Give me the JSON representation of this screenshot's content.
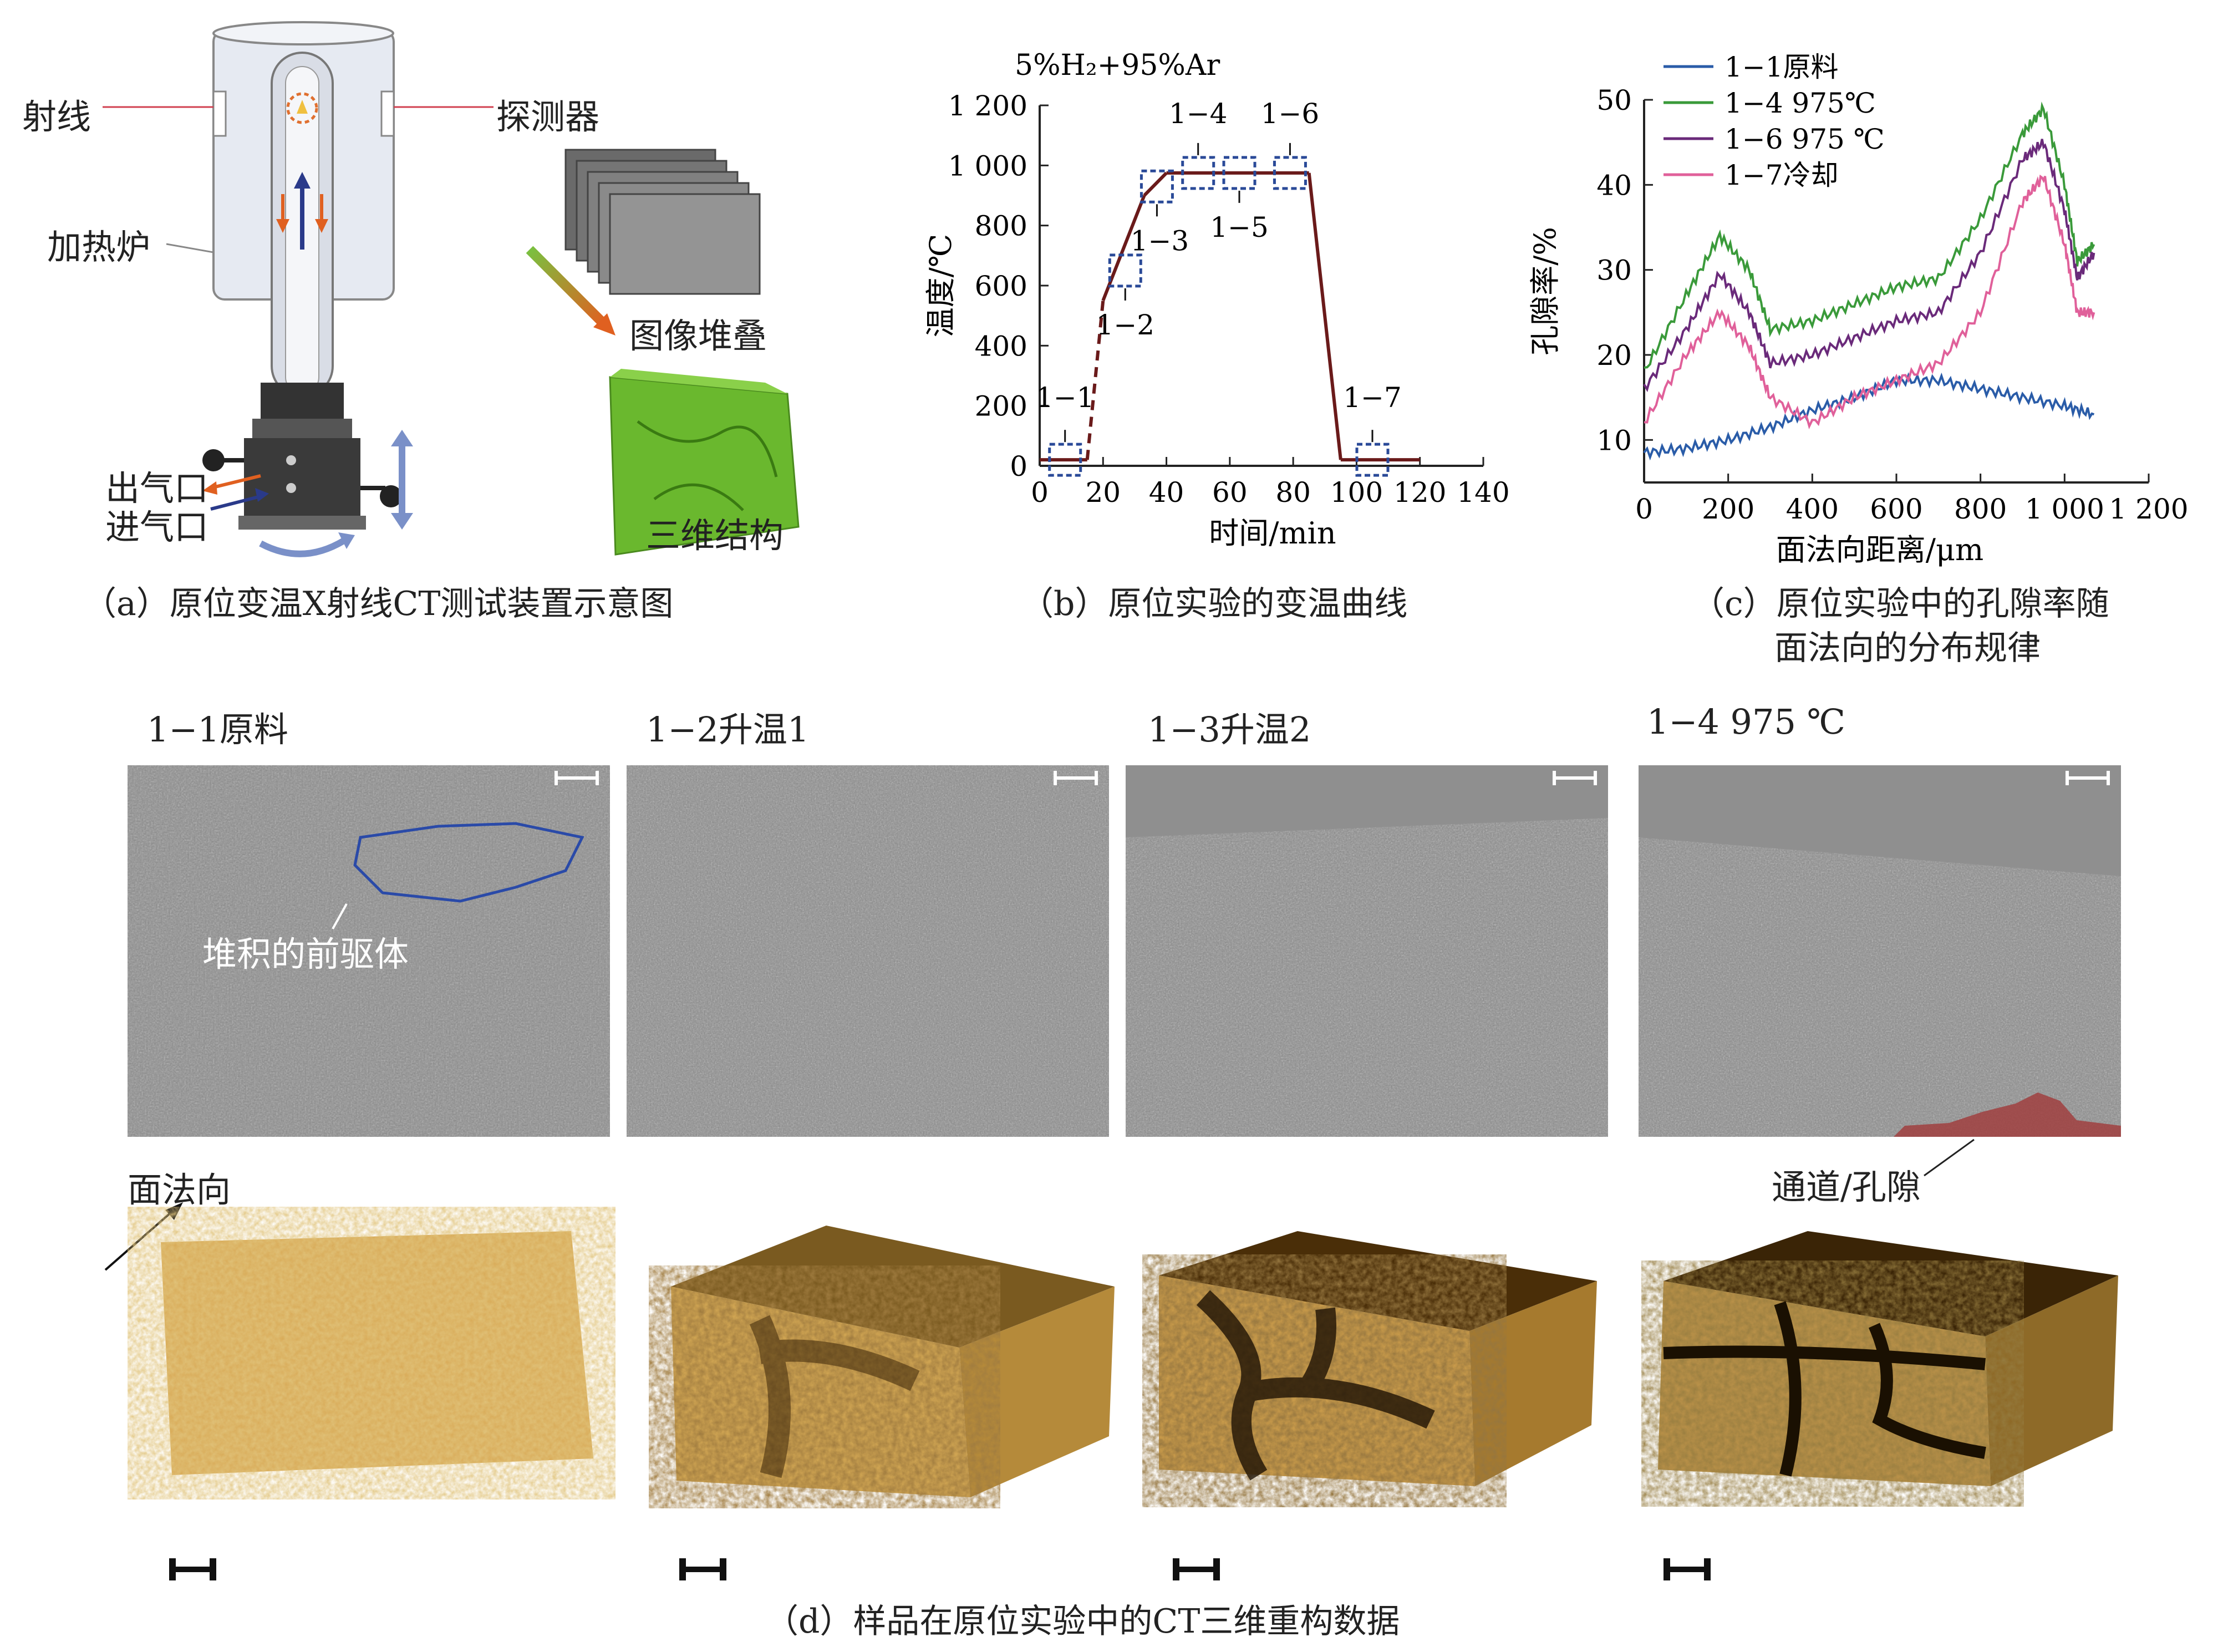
{
  "panel_a": {
    "ray_label": "射线",
    "detector_label": "探测器",
    "furnace_label": "加热炉",
    "outlet_label": "出气口",
    "inlet_label": "进气口",
    "stack_label": "图像堆叠",
    "structure_label": "三维结构",
    "caption": "（a）原位变温X射线CT测试装置示意图"
  },
  "panel_b": {
    "caption": "（b）原位实验的变温曲线",
    "atmosphere": "5%H₂+95%Ar",
    "points": [
      "1−1",
      "1−2",
      "1−3",
      "1−4",
      "1−5",
      "1−6",
      "1−7"
    ],
    "chart_data": {
      "type": "line",
      "xlabel": "时间/min",
      "ylabel": "温度/℃",
      "xlim": [
        0,
        140
      ],
      "ylim": [
        0,
        1200
      ],
      "x_ticks": [
        "0",
        "20",
        "40",
        "60",
        "80",
        "100",
        "120",
        "140"
      ],
      "y_ticks": [
        "0",
        "200",
        "400",
        "600",
        "800",
        "1 000",
        "1 200"
      ],
      "series": [
        {
          "x": [
            0,
            15,
            20,
            33,
            40,
            85,
            95,
            120
          ],
          "y": [
            20,
            20,
            550,
            900,
            975,
            975,
            20,
            20
          ]
        }
      ]
    }
  },
  "panel_c": {
    "caption_line1": "（c）原位实验中的孔隙率随",
    "caption_line2": "面法向的分布规律",
    "chart_data": {
      "type": "line",
      "xlabel": "面法向距离/μm",
      "ylabel": "孔隙率/%",
      "xlim": [
        0,
        1200
      ],
      "ylim": [
        5,
        50
      ],
      "x_ticks": [
        "0",
        "200",
        "400",
        "600",
        "800",
        "1 000",
        "1 200"
      ],
      "y_ticks": [
        "10",
        "20",
        "30",
        "40",
        "50"
      ],
      "series": [
        {
          "name": "1−1原料",
          "color": "#2a5ca8",
          "x": [
            0,
            100,
            200,
            300,
            400,
            500,
            600,
            700,
            800,
            900,
            1000,
            1070
          ],
          "y": [
            8.5,
            9,
            10,
            11.5,
            13.5,
            15,
            17,
            17,
            16,
            15,
            14,
            13
          ]
        },
        {
          "name": "1−4 975℃",
          "color": "#3a9a3a",
          "x": [
            0,
            100,
            180,
            250,
            300,
            400,
            500,
            600,
            700,
            800,
            900,
            950,
            1000,
            1030,
            1070
          ],
          "y": [
            18,
            27,
            34,
            30,
            23,
            24,
            26,
            28,
            29,
            36,
            46,
            49,
            40,
            31,
            33
          ]
        },
        {
          "name": "1−6 975 ℃",
          "color": "#6a2a7a",
          "x": [
            0,
            100,
            180,
            250,
            300,
            400,
            500,
            600,
            700,
            800,
            900,
            950,
            1000,
            1030,
            1070
          ],
          "y": [
            16,
            23,
            29.5,
            25,
            19,
            20,
            22,
            24,
            25,
            32,
            43,
            45,
            37,
            29,
            32
          ]
        },
        {
          "name": "1−7冷却",
          "color": "#e0609a",
          "x": [
            0,
            100,
            180,
            250,
            300,
            400,
            500,
            600,
            700,
            800,
            900,
            950,
            1000,
            1030,
            1070
          ],
          "y": [
            12,
            20,
            25,
            21,
            15,
            12,
            15,
            17,
            19,
            25,
            38,
            41,
            33,
            25,
            25
          ]
        }
      ],
      "legend": "top-left"
    }
  },
  "panel_d": {
    "titles": [
      "1−1原料",
      "1−2升温1",
      "1−3升温2",
      "1−4 975 ℃"
    ],
    "precursor_label": "堆积的前驱体",
    "channel_label": "通道/孔隙",
    "normal_label": "面法向",
    "caption": "（d）样品在原位实验中的CT三维重构数据"
  }
}
